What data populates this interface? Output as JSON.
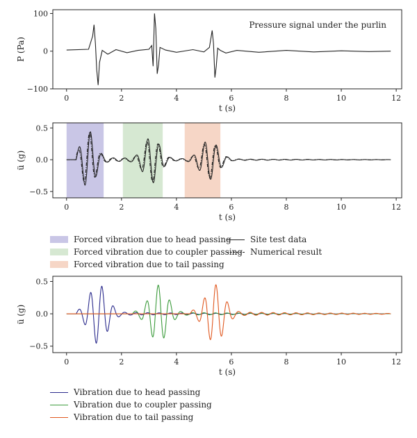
{
  "chart_data": [
    {
      "type": "line",
      "ylabel": "P (Pa)",
      "xlabel": "t (s)",
      "annotation": "Pressure signal under the purlin",
      "xlim": [
        -0.5,
        12.2
      ],
      "ylim": [
        -100,
        110
      ],
      "xticks": [
        0,
        2,
        4,
        6,
        8,
        10,
        12
      ],
      "yticks": [
        -100,
        0,
        100
      ],
      "series": [
        {
          "style": "solid",
          "color": "#222222",
          "x": [
            0,
            0.8,
            0.95,
            1.0,
            1.05,
            1.1,
            1.15,
            1.2,
            1.3,
            1.5,
            1.8,
            2.2,
            2.6,
            3.0,
            3.1,
            3.15,
            3.2,
            3.25,
            3.3,
            3.35,
            3.4,
            3.6,
            4.0,
            4.6,
            5.0,
            5.2,
            5.3,
            5.35,
            5.4,
            5.45,
            5.5,
            5.6,
            5.8,
            6.2,
            7.0,
            8.0,
            9.0,
            10.0,
            11.0,
            11.8
          ],
          "y": [
            3,
            5,
            40,
            70,
            20,
            -50,
            -90,
            -30,
            2,
            -8,
            4,
            -4,
            2,
            5,
            15,
            -40,
            100,
            60,
            -60,
            -35,
            10,
            3,
            -3,
            4,
            -2,
            10,
            55,
            20,
            -70,
            -40,
            8,
            2,
            -5,
            2,
            -3,
            2,
            -2,
            1,
            -1,
            0
          ]
        }
      ]
    },
    {
      "type": "line",
      "ylabel": "ü (g)",
      "xlabel": "t (s)",
      "xlim": [
        -0.5,
        12.2
      ],
      "ylim": [
        -0.6,
        0.58
      ],
      "xticks": [
        0,
        2,
        4,
        6,
        8,
        10,
        12
      ],
      "yticks": [
        -0.5,
        0.0,
        0.5
      ],
      "ytick_labels": [
        "−0.5",
        "0.0",
        "0.5"
      ],
      "regions": [
        {
          "x0": 0.0,
          "x1": 1.35,
          "color": "#c9c6e6"
        },
        {
          "x0": 2.05,
          "x1": 3.5,
          "color": "#d6e8d2"
        },
        {
          "x0": 4.3,
          "x1": 5.6,
          "color": "#f6d6c6"
        }
      ],
      "series": [
        {
          "name": "Site test data",
          "style": "solid",
          "color": "#222222",
          "model": {
            "t0": 0.35,
            "freq": 2.4,
            "amps": [
              [
                0.8,
                0.42,
                0.35
              ],
              [
                3.1,
                0.35,
                0.4
              ],
              [
                5.2,
                0.3,
                0.45
              ]
            ],
            "decay_tail": 0.04
          }
        },
        {
          "name": "Numerical result",
          "style": "dashdot",
          "color": "#222222",
          "model": {
            "t0": 0.35,
            "freq": 2.4,
            "phase": 0.5,
            "amps": [
              [
                0.8,
                0.4,
                0.35
              ],
              [
                3.1,
                0.33,
                0.4
              ],
              [
                5.2,
                0.28,
                0.45
              ]
            ],
            "decay_tail": 0.03
          }
        }
      ]
    },
    {
      "type": "line",
      "ylabel": "ü (g)",
      "xlabel": "t (s)",
      "xlim": [
        -0.5,
        12.2
      ],
      "ylim": [
        -0.6,
        0.58
      ],
      "xticks": [
        0,
        2,
        4,
        6,
        8,
        10,
        12
      ],
      "yticks": [
        -0.5,
        0.0,
        0.5
      ],
      "ytick_labels": [
        "−0.5",
        "0.0",
        "0.5"
      ],
      "series": [
        {
          "name": "Vibration due to head passing",
          "style": "solid",
          "color": "#2a2a8c",
          "model": {
            "t0": 0.35,
            "freq": 2.4,
            "amps": [
              [
                1.15,
                0.44,
                0.45
              ]
            ],
            "decay_tail": 0.03
          }
        },
        {
          "name": "Vibration due to coupler passing",
          "style": "solid",
          "color": "#3a9a3a",
          "model": {
            "t0": 2.4,
            "freq": 2.4,
            "amps": [
              [
                3.35,
                0.42,
                0.45
              ]
            ],
            "decay_tail": 0.03
          }
        },
        {
          "name": "Vibration due to tail passing",
          "style": "solid",
          "color": "#e0571e",
          "model": {
            "t0": 4.5,
            "freq": 2.4,
            "amps": [
              [
                5.4,
                0.42,
                0.45
              ]
            ],
            "decay_tail": 0.04
          }
        }
      ]
    }
  ],
  "legend_top": {
    "boxes": [
      {
        "label": "Forced vibration due to head passing",
        "color": "#c9c6e6"
      },
      {
        "label": "Forced vibration due to coupler passing",
        "color": "#d6e8d2"
      },
      {
        "label": "Forced vibration due to tail passing",
        "color": "#f6d6c6"
      }
    ],
    "lines": [
      {
        "label": "Site test data",
        "style": "solid"
      },
      {
        "label": "Numerical result",
        "style": "dashdot"
      }
    ]
  },
  "legend_bottom": {
    "lines": [
      {
        "label": "Vibration due to head passing",
        "color": "#2a2a8c"
      },
      {
        "label": "Vibration due to coupler passing",
        "color": "#3a9a3a"
      },
      {
        "label": "Vibration due to tail passing",
        "color": "#e0571e"
      }
    ]
  }
}
